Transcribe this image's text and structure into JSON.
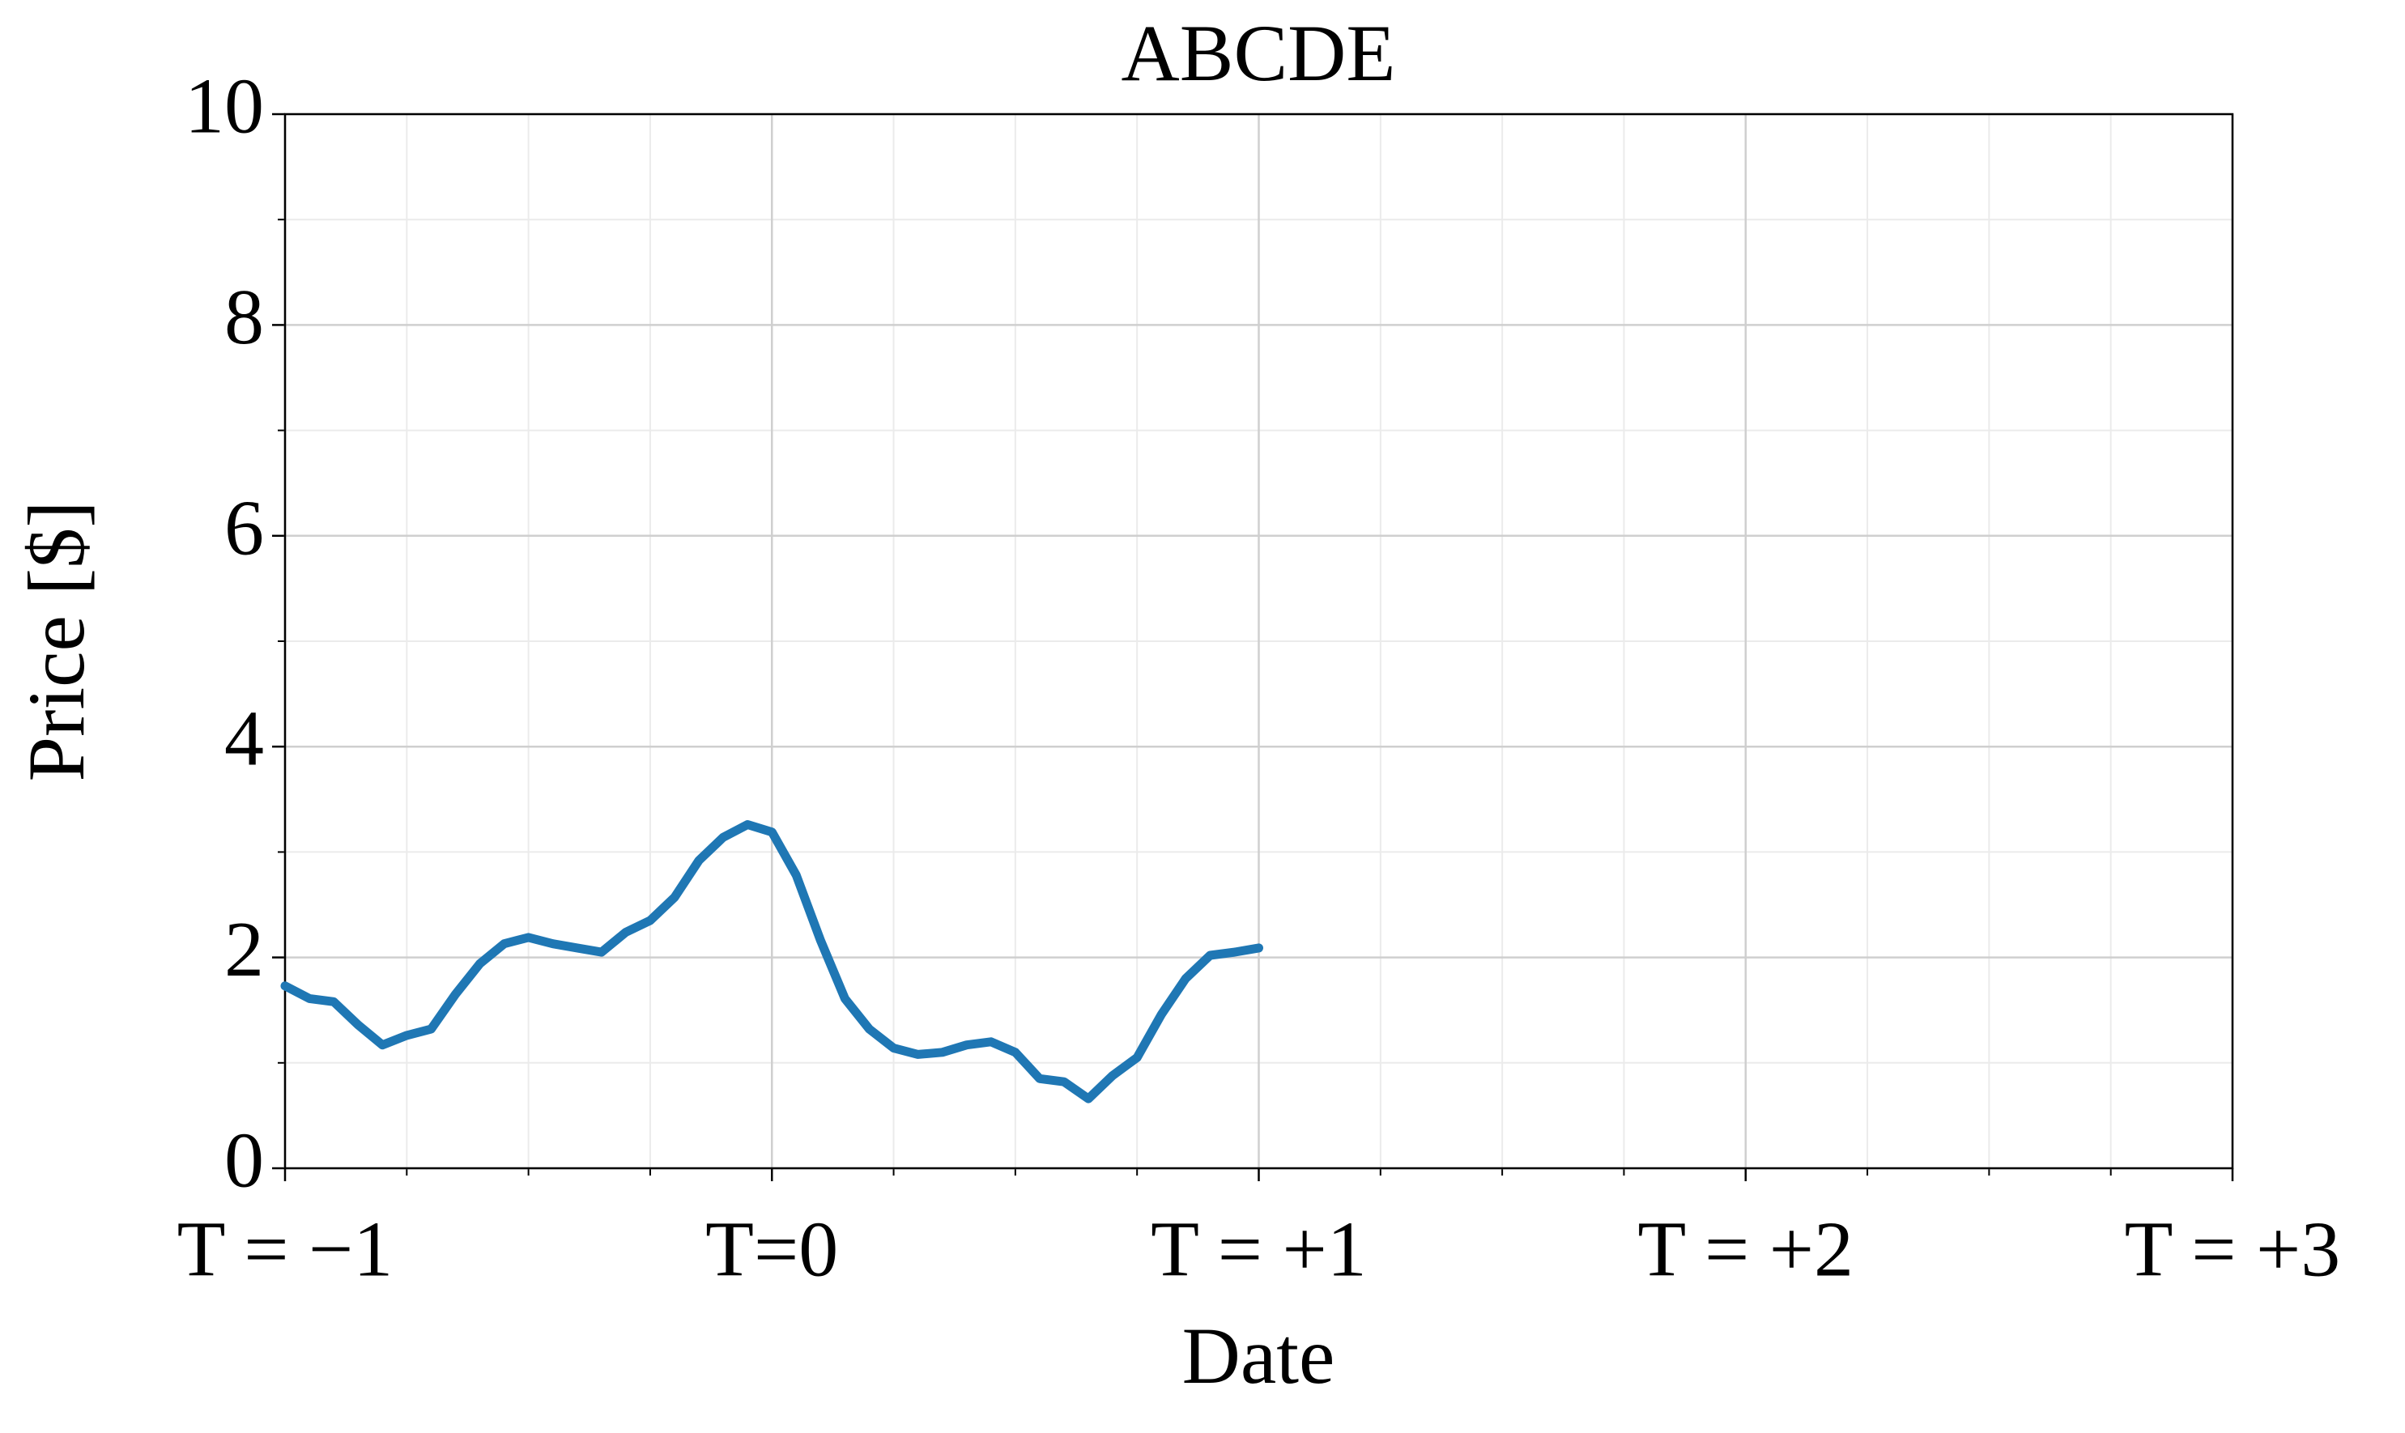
{
  "chart_data": {
    "type": "line",
    "title": "ABCDE",
    "xlabel": "Date",
    "ylabel": "Price [$]",
    "x": [
      -1.0,
      -0.95,
      -0.9,
      -0.85,
      -0.8,
      -0.75,
      -0.7,
      -0.65,
      -0.6,
      -0.55,
      -0.5,
      -0.45,
      -0.4,
      -0.35,
      -0.3,
      -0.25,
      -0.2,
      -0.15,
      -0.1,
      -0.05,
      0.0,
      0.05,
      0.1,
      0.15,
      0.2,
      0.25,
      0.3,
      0.35,
      0.4,
      0.45,
      0.5,
      0.55,
      0.6,
      0.65,
      0.7,
      0.75,
      0.8,
      0.85,
      0.9,
      0.95,
      1.0
    ],
    "values": [
      1.73,
      1.61,
      1.58,
      1.36,
      1.17,
      1.26,
      1.32,
      1.65,
      1.94,
      2.13,
      2.19,
      2.13,
      2.09,
      2.05,
      2.24,
      2.35,
      2.57,
      2.92,
      3.14,
      3.26,
      3.19,
      2.78,
      2.16,
      1.61,
      1.32,
      1.14,
      1.08,
      1.1,
      1.17,
      1.2,
      1.1,
      0.85,
      0.82,
      0.66,
      0.88,
      1.05,
      1.46,
      1.8,
      2.02,
      2.05,
      2.09
    ],
    "color": "#1f77b4",
    "xlim": [
      -1,
      3
    ],
    "xticks": [
      {
        "value": -1,
        "label": "T = −1"
      },
      {
        "value": 0,
        "label": "T=0"
      },
      {
        "value": 1,
        "label": "T = +1"
      },
      {
        "value": 2,
        "label": "T = +2"
      },
      {
        "value": 3,
        "label": "T = +3"
      }
    ],
    "ylim": [
      0,
      10
    ],
    "yticks": [
      0,
      2,
      4,
      6,
      8,
      10
    ],
    "grid": true
  }
}
